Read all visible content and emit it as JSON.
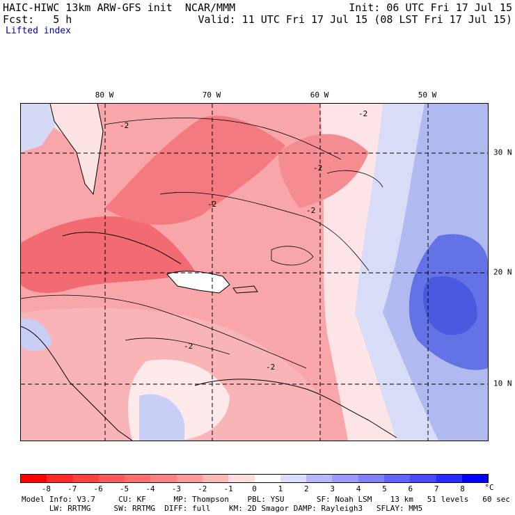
{
  "header": {
    "title_left": "HAIC-HIWC 13km ARW-GFS init  NCAR/MMM",
    "fcst": "Fcst:   5 h",
    "init": "Init: 06 UTC Fri 17 Jul 15",
    "valid": "Valid: 11 UTC Fri 17 Jul 15 (08 LST Fri 17 Jul 15)",
    "field": "Lifted index"
  },
  "map": {
    "lon_labels": [
      "80 W",
      "70 W",
      "60 W",
      "50 W"
    ],
    "lat_labels": [
      "30 N",
      "20 N",
      "10 N"
    ],
    "contour_label": "-2",
    "colors": {
      "strong_neg": "#f2606a",
      "mid_neg": "#f7959a",
      "weak_neg": "#fbc4c6",
      "neutral": "#fde9ea",
      "weak_pos": "#d8dcf6",
      "mid_pos": "#b0b9f0",
      "strong_pos": "#6373e6",
      "very_pos": "#4a5ae0",
      "land_white": "#ffffff"
    }
  },
  "colorbar": {
    "unit": "°C",
    "labels": [
      "-8",
      "-7",
      "-6",
      "-5",
      "-4",
      "-3",
      "-2",
      "-1",
      "0",
      "1",
      "2",
      "3",
      "4",
      "5",
      "6",
      "7",
      "8"
    ],
    "colors": [
      "#ff0000",
      "#ff2828",
      "#ff4040",
      "#ff5858",
      "#ff6d6d",
      "#ff8282",
      "#ff9a9a",
      "#ffb8b8",
      "#ffdcdc",
      "#ffffff",
      "#dcdcff",
      "#b8b8ff",
      "#9a9aff",
      "#8080ff",
      "#6262ff",
      "#4848ff",
      "#2a2aff",
      "#0000ff"
    ]
  },
  "footer": {
    "line1": "Model Info: V3.7     CU: KF      MP: Thompson    PBL: YSU       SF: Noah LSM    13 km   51 levels   60 sec",
    "line2": "      LW: RRTMG     SW: RRTMG  DIFF: full    KM: 2D Smagor DAMP: Rayleigh3   SFLAY: MM5"
  }
}
